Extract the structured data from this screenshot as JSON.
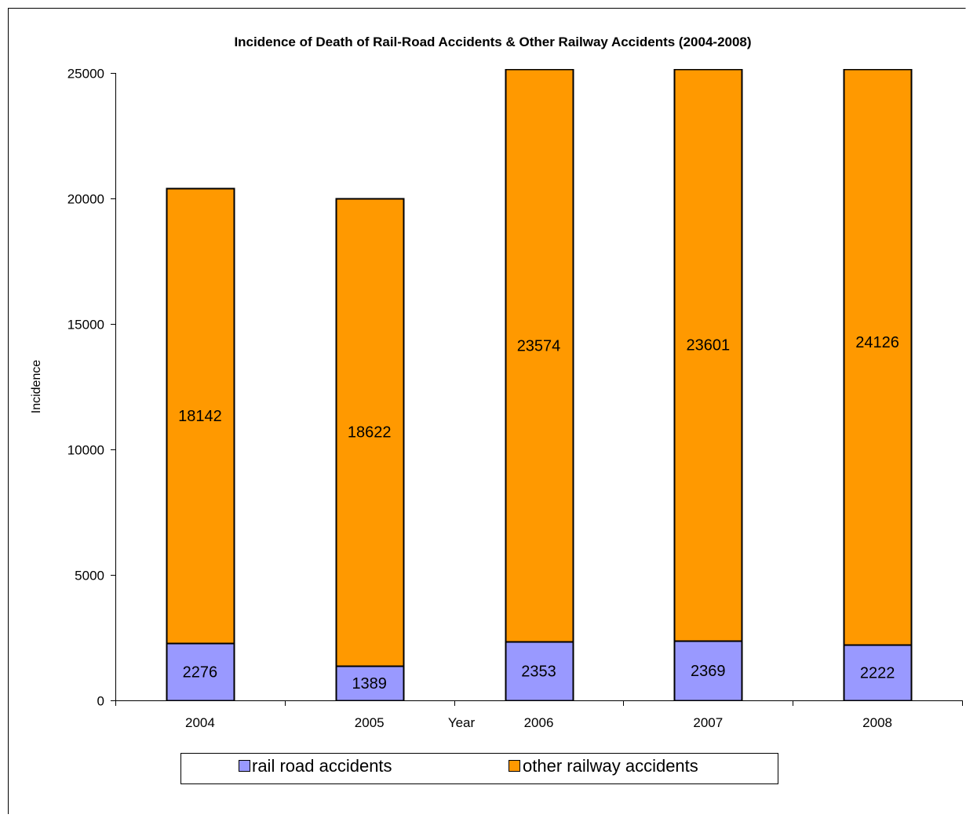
{
  "chart_data": {
    "type": "bar",
    "stacked": true,
    "title": "Incidence of Death of Rail-Road Accidents & Other Railway Accidents (2004-2008)",
    "xlabel": "Year",
    "ylabel": "Incidence",
    "categories": [
      "2004",
      "2005",
      "2006",
      "2007",
      "2008"
    ],
    "series": [
      {
        "name": "rail road accidents",
        "color": "#9999ff",
        "values": [
          2276,
          1389,
          2353,
          2369,
          2222
        ]
      },
      {
        "name": "other railway accidents",
        "color": "#ff9900",
        "values": [
          18142,
          18622,
          23574,
          23601,
          24126
        ]
      }
    ],
    "ylim": [
      0,
      25000
    ],
    "yticks": [
      "0",
      "5000",
      "10000",
      "15000",
      "20000",
      "25000"
    ],
    "grid": false,
    "legend_position": "bottom",
    "data_labels": true
  }
}
